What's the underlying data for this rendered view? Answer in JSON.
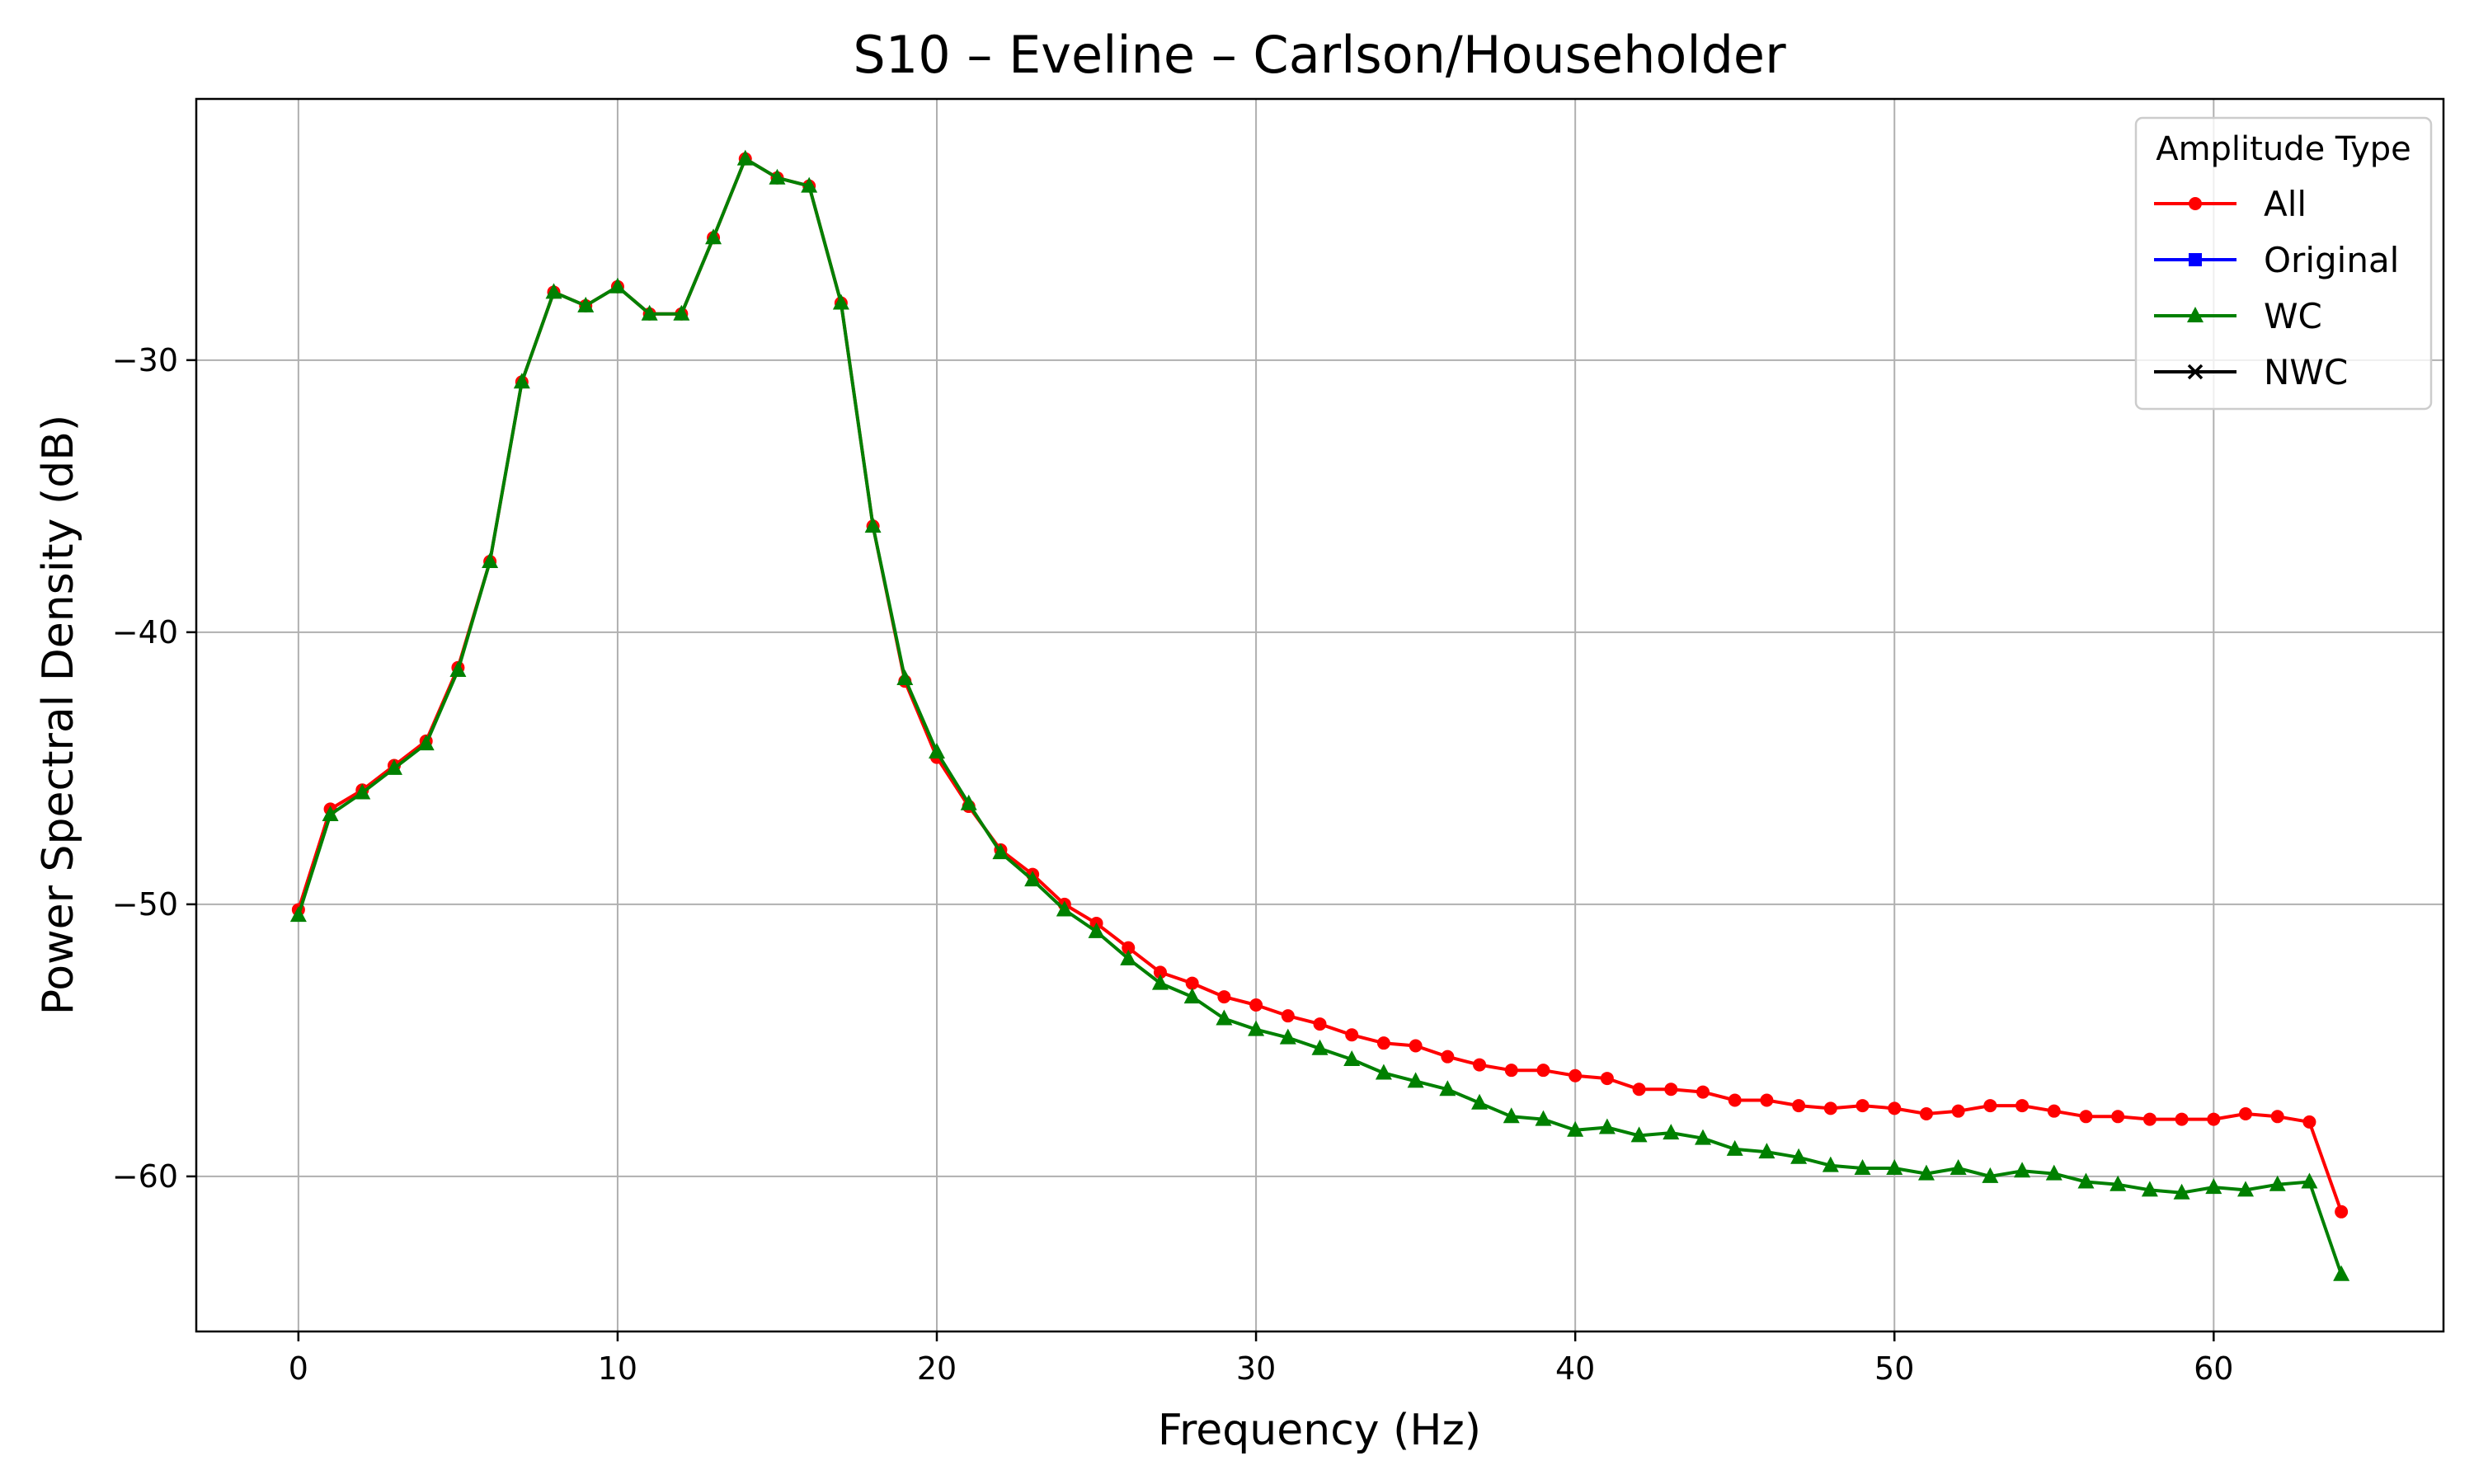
{
  "chart_data": {
    "type": "line",
    "title": "S10 – Eveline – Carlson/Householder",
    "xlabel": "Frequency (Hz)",
    "ylabel": "Power Spectral Density (dB)",
    "xlim": [
      -3.2,
      67.2
    ],
    "ylim": [
      -65.7,
      -20.4
    ],
    "xticks": [
      0,
      10,
      20,
      30,
      40,
      50,
      60
    ],
    "xtick_labels": [
      "0",
      "10",
      "20",
      "30",
      "40",
      "50",
      "60"
    ],
    "yticks": [
      -30,
      -40,
      -50,
      -60
    ],
    "ytick_labels": [
      "−30",
      "−40",
      "−50",
      "−60"
    ],
    "grid": true,
    "legend": {
      "title": "Amplitude Type",
      "location": "upper right"
    },
    "x": [
      0,
      1,
      2,
      3,
      4,
      5,
      6,
      7,
      8,
      9,
      10,
      11,
      12,
      13,
      14,
      15,
      16,
      17,
      18,
      19,
      20,
      21,
      22,
      23,
      24,
      25,
      26,
      27,
      28,
      29,
      30,
      31,
      32,
      33,
      34,
      35,
      36,
      37,
      38,
      39,
      40,
      41,
      42,
      43,
      44,
      45,
      46,
      47,
      48,
      49,
      50,
      51,
      52,
      53,
      54,
      55,
      56,
      57,
      58,
      59,
      60,
      61,
      62,
      63,
      64
    ],
    "series": [
      {
        "name": "All",
        "color": "#ff0000",
        "marker": "circle",
        "draw": true,
        "values": [
          -50.2,
          -46.5,
          -45.8,
          -44.9,
          -44.0,
          -41.3,
          -37.4,
          -30.8,
          -27.5,
          -28.0,
          -27.3,
          -28.3,
          -28.3,
          -25.5,
          -22.6,
          -23.3,
          -23.6,
          -27.9,
          -36.1,
          -41.8,
          -44.6,
          -46.4,
          -48.0,
          -48.9,
          -50.0,
          -50.7,
          -51.6,
          -52.5,
          -52.9,
          -53.4,
          -53.7,
          -54.1,
          -54.4,
          -54.8,
          -55.1,
          -55.2,
          -55.6,
          -55.9,
          -56.1,
          -56.1,
          -56.3,
          -56.4,
          -56.8,
          -56.8,
          -56.9,
          -57.2,
          -57.2,
          -57.4,
          -57.5,
          -57.4,
          -57.5,
          -57.7,
          -57.6,
          -57.4,
          -57.4,
          -57.6,
          -57.8,
          -57.8,
          -57.9,
          -57.9,
          -57.9,
          -57.7,
          -57.8,
          -58.0,
          -61.3
        ]
      },
      {
        "name": "Original",
        "color": "#0000ff",
        "marker": "square",
        "draw": false,
        "values": [
          -50.2,
          -46.5,
          -45.8,
          -44.9,
          -44.0,
          -41.3,
          -37.4,
          -30.8,
          -27.5,
          -28.0,
          -27.3,
          -28.3,
          -28.3,
          -25.5,
          -22.6,
          -23.3,
          -23.6,
          -27.9,
          -36.1,
          -41.8,
          -44.6,
          -46.4,
          -48.0,
          -48.9,
          -50.0,
          -50.7,
          -51.6,
          -52.5,
          -52.9,
          -53.4,
          -53.7,
          -54.1,
          -54.4,
          -54.8,
          -55.1,
          -55.2,
          -55.6,
          -55.9,
          -56.1,
          -56.1,
          -56.3,
          -56.4,
          -56.8,
          -56.8,
          -56.9,
          -57.2,
          -57.2,
          -57.4,
          -57.5,
          -57.4,
          -57.5,
          -57.7,
          -57.6,
          -57.4,
          -57.4,
          -57.6,
          -57.8,
          -57.8,
          -57.9,
          -57.9,
          -57.9,
          -57.7,
          -57.8,
          -58.0,
          -61.3
        ]
      },
      {
        "name": "WC",
        "color": "#008000",
        "marker": "triangle",
        "draw": true,
        "values": [
          -50.4,
          -46.7,
          -45.9,
          -45.0,
          -44.1,
          -41.4,
          -37.4,
          -30.8,
          -27.5,
          -28.0,
          -27.3,
          -28.3,
          -28.3,
          -25.5,
          -22.6,
          -23.3,
          -23.6,
          -27.9,
          -36.1,
          -41.7,
          -44.4,
          -46.3,
          -48.1,
          -49.1,
          -50.2,
          -51.0,
          -52.0,
          -52.9,
          -53.4,
          -54.2,
          -54.6,
          -54.9,
          -55.3,
          -55.7,
          -56.2,
          -56.5,
          -56.8,
          -57.3,
          -57.8,
          -57.9,
          -58.3,
          -58.2,
          -58.5,
          -58.4,
          -58.6,
          -59.0,
          -59.1,
          -59.3,
          -59.6,
          -59.7,
          -59.7,
          -59.9,
          -59.7,
          -60.0,
          -59.8,
          -59.9,
          -60.2,
          -60.3,
          -60.5,
          -60.6,
          -60.4,
          -60.5,
          -60.3,
          -60.2,
          -63.6
        ]
      },
      {
        "name": "NWC",
        "color": "#000000",
        "marker": "x",
        "draw": false,
        "values": [
          -50.4,
          -46.7,
          -45.9,
          -45.0,
          -44.1,
          -41.4,
          -37.4,
          -30.8,
          -27.5,
          -28.0,
          -27.3,
          -28.3,
          -28.3,
          -25.5,
          -22.6,
          -23.3,
          -23.6,
          -27.9,
          -36.1,
          -41.7,
          -44.4,
          -46.3,
          -48.1,
          -49.1,
          -50.2,
          -51.0,
          -52.0,
          -52.9,
          -53.4,
          -54.2,
          -54.6,
          -54.9,
          -55.3,
          -55.7,
          -56.2,
          -56.5,
          -56.8,
          -57.3,
          -57.8,
          -57.9,
          -58.3,
          -58.2,
          -58.5,
          -58.4,
          -58.6,
          -59.0,
          -59.1,
          -59.3,
          -59.6,
          -59.7,
          -59.7,
          -59.9,
          -59.7,
          -60.0,
          -59.8,
          -59.9,
          -60.2,
          -60.3,
          -60.5,
          -60.6,
          -60.4,
          -60.5,
          -60.3,
          -60.2,
          -63.6
        ]
      }
    ]
  }
}
